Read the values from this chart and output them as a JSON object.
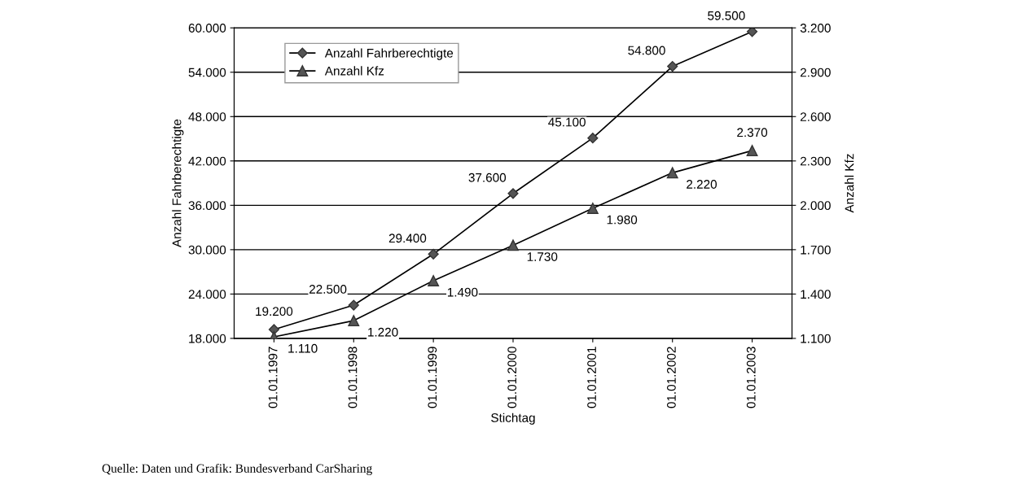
{
  "chart_data": {
    "type": "line",
    "categories": [
      "01.01.1997",
      "01.01.1998",
      "01.01.1999",
      "01.01.2000",
      "01.01.2001",
      "01.01.2002",
      "01.01.2003"
    ],
    "series": [
      {
        "name": "Anzahl Fahrberechtigte",
        "color": "#000000",
        "marker": "diamond",
        "values": [
          19200,
          22500,
          29400,
          37600,
          45100,
          54800,
          59500
        ],
        "value_labels": [
          "19.200",
          "22.500",
          "29.400",
          "37.600",
          "45.100",
          "54.800",
          "59.500"
        ]
      },
      {
        "name": "Anzahl Kfz",
        "color": "#000000",
        "marker": "triangle",
        "axis": "y2",
        "values": [
          1110,
          1220,
          1490,
          1730,
          1980,
          2220,
          2370
        ],
        "value_labels": [
          "1.110",
          "1.220",
          "1.490",
          "1.730",
          "1.980",
          "2.220",
          "2.370"
        ]
      }
    ],
    "xlabel": "Stichtag",
    "ylabel": "Anzahl Fahrberechtigte",
    "y2label": "Anzahl Kfz",
    "ylim": [
      18000,
      60000
    ],
    "yticks": [
      {
        "value": 18000,
        "label": "18.000"
      },
      {
        "value": 24000,
        "label": "24.000"
      },
      {
        "value": 30000,
        "label": "30.000"
      },
      {
        "value": 36000,
        "label": "36.000"
      },
      {
        "value": 42000,
        "label": "42.000"
      },
      {
        "value": 48000,
        "label": "48.000"
      },
      {
        "value": 54000,
        "label": "54.000"
      },
      {
        "value": 60000,
        "label": "60.000"
      }
    ],
    "y2lim": [
      1100,
      3200
    ],
    "y2ticks": [
      {
        "value": 1100,
        "label": "1.100"
      },
      {
        "value": 1400,
        "label": "1.400"
      },
      {
        "value": 1700,
        "label": "1.700"
      },
      {
        "value": 2000,
        "label": "2.000"
      },
      {
        "value": 2300,
        "label": "2.300"
      },
      {
        "value": 2600,
        "label": "2.600"
      },
      {
        "value": 2900,
        "label": "2.900"
      },
      {
        "value": 3200,
        "label": "3.200"
      }
    ],
    "grid": "y",
    "legend": "top left",
    "line_style": "solid",
    "annotations": [
      "Quelle: Daten und Grafik: Bundesverband CarSharing"
    ]
  }
}
